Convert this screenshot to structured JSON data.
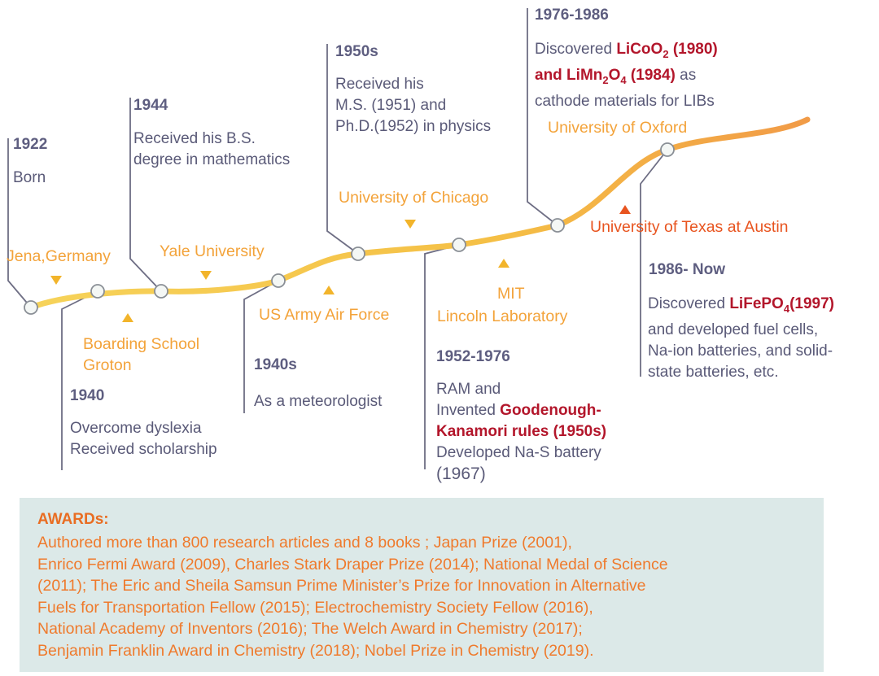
{
  "events": [
    {
      "year": "1922",
      "desc": [
        "Born"
      ]
    },
    {
      "year": "1940",
      "desc": [
        "Overcome dyslexia",
        "Received scholarship"
      ]
    },
    {
      "year": "1944",
      "desc": [
        "Received his B.S.",
        "degree in mathematics"
      ]
    },
    {
      "year": "1940s",
      "desc": [
        "As a meteorologist"
      ]
    },
    {
      "year": "1950s",
      "desc": [
        "Received his",
        "M.S. (1951) and",
        "Ph.D.(1952) in physics"
      ]
    },
    {
      "year": "1952-1976",
      "line1": "RAM and",
      "line2_pre": "Invented ",
      "line2_hl": "Goodenough-",
      "line3_hl": "Kanamori rules (1950s)",
      "line4": "Developed Na-S battery",
      "line5": "(1967)"
    },
    {
      "year": "1976-1986",
      "line1_pre": "Discovered ",
      "line1_hl": "LiCoO",
      "line1_sub": "2",
      "line1_hl2": " (1980)",
      "line2_hl": "and LiMn",
      "line2_sub1": "2",
      "line2_hl_b": "O",
      "line2_sub2": "4",
      "line2_hl_c": " (1984)",
      "line2_post": " as",
      "line3": "cathode materials for LIBs"
    },
    {
      "year": "1986- Now",
      "line1_pre": "Discovered ",
      "line1_hl": "LiFePO",
      "line1_sub": "4",
      "line1_hl2": "(1997)",
      "line2": "and developed fuel cells,",
      "line3": "Na-ion batteries, and solid-",
      "line4": "state batteries, etc."
    }
  ],
  "places": {
    "jena": "Jena,Germany",
    "groton": [
      "Boarding School",
      "Groton"
    ],
    "yale": "Yale University",
    "army": "US Army Air Force",
    "chicago": "University of Chicago",
    "mit": [
      "MIT",
      "Lincoln Laboratory"
    ],
    "texas": "University of Texas at Austin",
    "oxford": "University of Oxford"
  },
  "awards": {
    "title": "AWARDs:",
    "lines": [
      "Authored more than 800 research articles and 8 books ; Japan Prize (2001),",
      "Enrico Fermi Award (2009), Charles Stark Draper Prize (2014); National Medal of Science",
      "(2011);  The Eric and Sheila Samsun Prime Minister’s Prize for Innovation in Alternative",
      "Fuels for Transportation Fellow (2015); Electrochemistry Society Fellow (2016),",
      "National Academy of Inventors (2016); The Welch Award in Chemistry (2017);",
      "Benjamin Franklin Award in Chemistry (2018); Nobel Prize in Chemistry (2019)."
    ]
  },
  "colors": {
    "curve": "#f5c34a",
    "connector": "#6e6e84",
    "node_fill": "#f4f7f5",
    "node_stroke": "#8a8f96",
    "highlight": "#b3162b",
    "place": "#f3a33a",
    "awards_bg": "#dce9e8"
  }
}
